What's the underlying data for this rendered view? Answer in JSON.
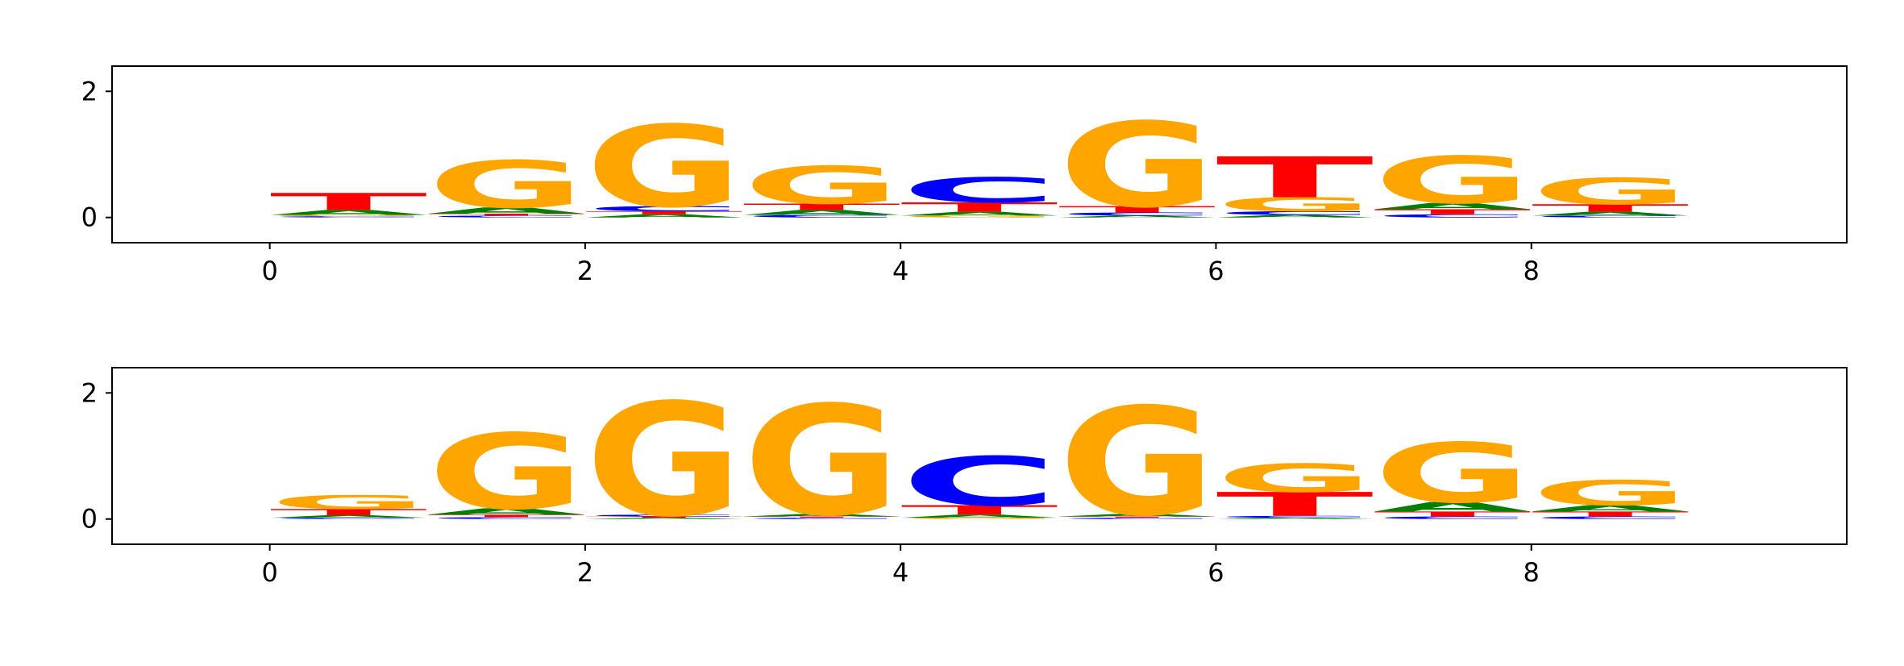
{
  "chart_data": [
    {
      "type": "logo",
      "x": [
        0,
        1,
        2,
        3,
        4,
        5,
        6,
        7,
        8
      ],
      "series": [
        {
          "name": "A",
          "color": "#008000",
          "values": [
            0.08,
            0.1,
            0.05,
            0.08,
            0.06,
            0.03,
            0.04,
            0.1,
            0.06
          ]
        },
        {
          "name": "C",
          "color": "#0000ff",
          "values": [
            0.02,
            0.03,
            0.08,
            0.04,
            0.4,
            0.05,
            0.06,
            0.05,
            0.03
          ]
        },
        {
          "name": "G",
          "color": "#ffa500",
          "values": [
            0.02,
            0.75,
            1.3,
            0.6,
            0.03,
            1.35,
            0.22,
            0.75,
            0.42
          ]
        },
        {
          "name": "T",
          "color": "#ff0000",
          "values": [
            0.27,
            0.03,
            0.05,
            0.1,
            0.15,
            0.1,
            0.65,
            0.08,
            0.12
          ]
        }
      ],
      "xlim": [
        -1,
        10
      ],
      "xticks": [
        0,
        2,
        4,
        6,
        8
      ],
      "ylim": [
        -0.4,
        2.4
      ],
      "yticks": [
        0,
        2
      ]
    },
    {
      "type": "logo",
      "x": [
        0,
        1,
        2,
        3,
        4,
        5,
        6,
        7,
        8
      ],
      "series": [
        {
          "name": "A",
          "color": "#008000",
          "values": [
            0.04,
            0.1,
            0.02,
            0.04,
            0.05,
            0.04,
            0.02,
            0.15,
            0.1
          ]
        },
        {
          "name": "C",
          "color": "#0000ff",
          "values": [
            0.02,
            0.03,
            0.03,
            0.02,
            0.78,
            0.02,
            0.03,
            0.04,
            0.04
          ]
        },
        {
          "name": "G",
          "color": "#ffa500",
          "values": [
            0.22,
            1.2,
            1.8,
            1.75,
            0.02,
            1.72,
            0.45,
            0.95,
            0.4
          ]
        },
        {
          "name": "T",
          "color": "#ff0000",
          "values": [
            0.1,
            0.04,
            0.02,
            0.02,
            0.15,
            0.02,
            0.38,
            0.08,
            0.08
          ]
        }
      ],
      "xlim": [
        -1,
        10
      ],
      "xticks": [
        0,
        2,
        4,
        6,
        8
      ],
      "ylim": [
        -0.4,
        2.4
      ],
      "yticks": [
        0,
        2
      ]
    }
  ]
}
